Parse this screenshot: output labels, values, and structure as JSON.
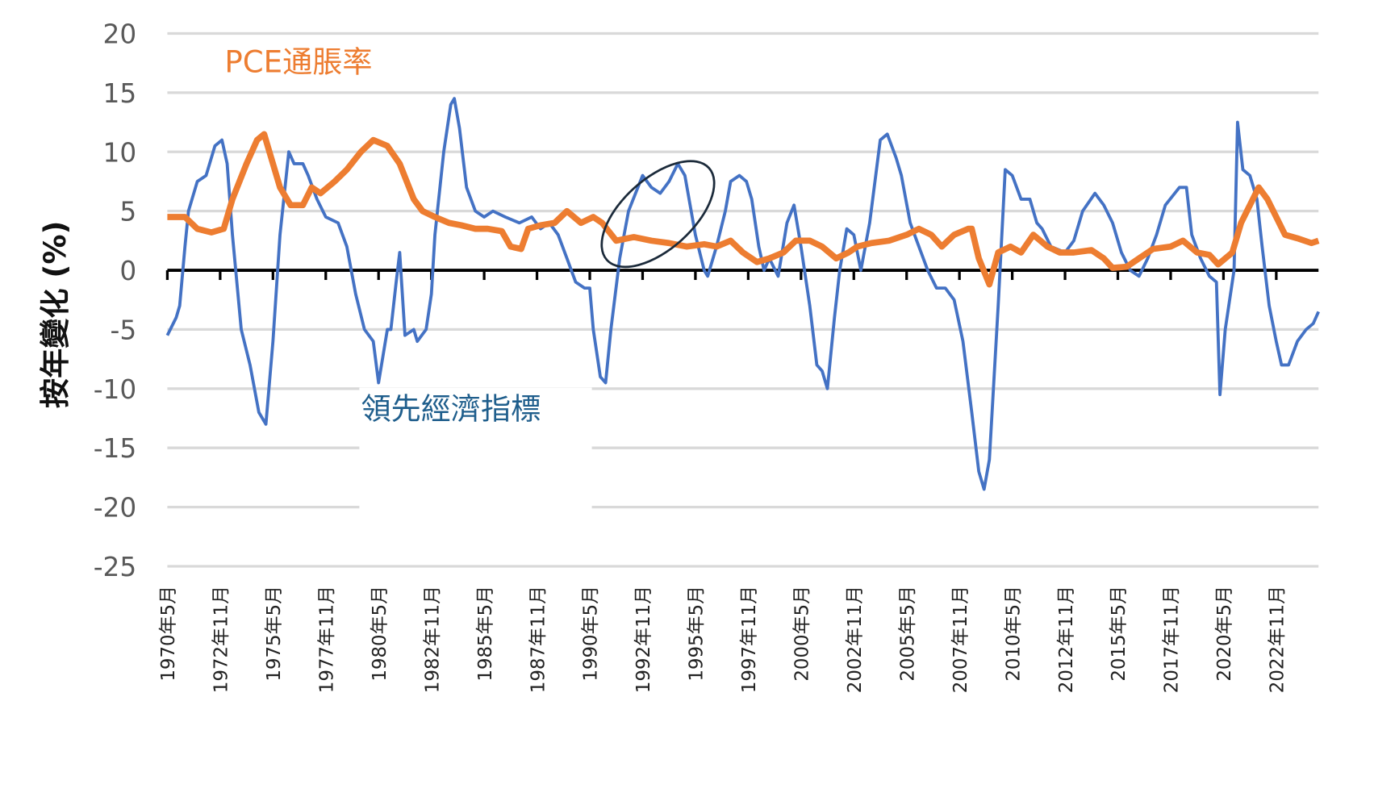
{
  "chart_data": {
    "type": "line",
    "title": "",
    "ylabel": "按年變化 (%)",
    "xlabel": "",
    "ylim": [
      -25,
      20
    ],
    "yticks": [
      "20",
      "15",
      "10",
      "5",
      "0",
      "-5",
      "-10",
      "-15",
      "-20",
      "-25"
    ],
    "ytick_values": [
      20,
      15,
      10,
      5,
      0,
      -5,
      -10,
      -15,
      -20,
      -25
    ],
    "x_unit": "months since 1970年5月",
    "xlim": [
      0,
      654
    ],
    "xtick_labels": [
      "1970年5月",
      "1972年11月",
      "1975年5月",
      "1977年11月",
      "1980年5月",
      "1982年11月",
      "1985年5月",
      "1987年11月",
      "1990年5月",
      "1992年11月",
      "1995年5月",
      "1997年11月",
      "2000年5月",
      "2002年11月",
      "2005年5月",
      "2007年11月",
      "2010年5月",
      "2012年11月",
      "2015年5月",
      "2017年11月",
      "2020年5月",
      "2022年11月"
    ],
    "grid": true,
    "series": [
      {
        "name": "PCE通脹率",
        "color": "#ED7D31",
        "points": [
          [
            0,
            4.5
          ],
          [
            10,
            4.5
          ],
          [
            17,
            3.5
          ],
          [
            25,
            3.2
          ],
          [
            32,
            3.5
          ],
          [
            37,
            6
          ],
          [
            45,
            9
          ],
          [
            51,
            11
          ],
          [
            55,
            11.5
          ],
          [
            59,
            9.5
          ],
          [
            64,
            7
          ],
          [
            70,
            5.5
          ],
          [
            77,
            5.5
          ],
          [
            82,
            7
          ],
          [
            87,
            6.5
          ],
          [
            95,
            7.5
          ],
          [
            102,
            8.5
          ],
          [
            110,
            10
          ],
          [
            117,
            11
          ],
          [
            125,
            10.5
          ],
          [
            132,
            9
          ],
          [
            140,
            6
          ],
          [
            145,
            5
          ],
          [
            152,
            4.5
          ],
          [
            160,
            4
          ],
          [
            167,
            3.8
          ],
          [
            175,
            3.5
          ],
          [
            182,
            3.5
          ],
          [
            190,
            3.3
          ],
          [
            195,
            2
          ],
          [
            201,
            1.8
          ],
          [
            205,
            3.5
          ],
          [
            212,
            3.8
          ],
          [
            220,
            4
          ],
          [
            227,
            5
          ],
          [
            235,
            4
          ],
          [
            242,
            4.5
          ],
          [
            247,
            4
          ],
          [
            255,
            2.5
          ],
          [
            265,
            2.8
          ],
          [
            275,
            2.5
          ],
          [
            285,
            2.3
          ],
          [
            295,
            2
          ],
          [
            305,
            2.2
          ],
          [
            312,
            2
          ],
          [
            320,
            2.5
          ],
          [
            327,
            1.5
          ],
          [
            335,
            0.7
          ],
          [
            342,
            1
          ],
          [
            350,
            1.5
          ],
          [
            357,
            2.5
          ],
          [
            365,
            2.5
          ],
          [
            372,
            2
          ],
          [
            380,
            1
          ],
          [
            387,
            1.5
          ],
          [
            392,
            2
          ],
          [
            400,
            2.3
          ],
          [
            410,
            2.5
          ],
          [
            420,
            3
          ],
          [
            427,
            3.5
          ],
          [
            434,
            3
          ],
          [
            440,
            2
          ],
          [
            447,
            3
          ],
          [
            455,
            3.5
          ],
          [
            457,
            3.5
          ],
          [
            461,
            1
          ],
          [
            467,
            -1.2
          ],
          [
            472,
            1.5
          ],
          [
            479,
            2
          ],
          [
            485,
            1.5
          ],
          [
            492,
            3
          ],
          [
            500,
            2
          ],
          [
            507,
            1.5
          ],
          [
            515,
            1.5
          ],
          [
            525,
            1.7
          ],
          [
            532,
            1
          ],
          [
            537,
            0.2
          ],
          [
            545,
            0.3
          ],
          [
            552,
            1
          ],
          [
            560,
            1.8
          ],
          [
            570,
            2
          ],
          [
            577,
            2.5
          ],
          [
            585,
            1.5
          ],
          [
            592,
            1.3
          ],
          [
            597,
            0.5
          ],
          [
            605,
            1.5
          ],
          [
            610,
            4
          ],
          [
            615,
            5.5
          ],
          [
            620,
            7
          ],
          [
            625,
            6
          ],
          [
            630,
            4.5
          ],
          [
            635,
            3
          ],
          [
            642,
            2.7
          ],
          [
            650,
            2.3
          ],
          [
            654,
            2.5
          ]
        ]
      },
      {
        "name": "領先經濟指標",
        "color": "#4472C4",
        "points": [
          [
            0,
            -5.5
          ],
          [
            5,
            -4
          ],
          [
            7,
            -3
          ],
          [
            10,
            2
          ],
          [
            12,
            5
          ],
          [
            17,
            7.5
          ],
          [
            22,
            8
          ],
          [
            27,
            10.5
          ],
          [
            31,
            11
          ],
          [
            34,
            9
          ],
          [
            37,
            3
          ],
          [
            42,
            -5
          ],
          [
            47,
            -8
          ],
          [
            52,
            -12
          ],
          [
            56,
            -13
          ],
          [
            60,
            -6
          ],
          [
            64,
            3
          ],
          [
            69,
            10
          ],
          [
            72,
            9
          ],
          [
            77,
            9
          ],
          [
            80,
            8
          ],
          [
            85,
            6
          ],
          [
            90,
            4.5
          ],
          [
            97,
            4
          ],
          [
            102,
            2
          ],
          [
            107,
            -2
          ],
          [
            112,
            -5
          ],
          [
            117,
            -6
          ],
          [
            120,
            -9.5
          ],
          [
            125,
            -5
          ],
          [
            127,
            -5
          ],
          [
            130,
            -1
          ],
          [
            132,
            1.5
          ],
          [
            135,
            -5.5
          ],
          [
            140,
            -5
          ],
          [
            142,
            -6
          ],
          [
            147,
            -5
          ],
          [
            150,
            -2
          ],
          [
            152,
            3
          ],
          [
            157,
            10
          ],
          [
            161,
            14
          ],
          [
            163,
            14.5
          ],
          [
            166,
            12
          ],
          [
            170,
            7
          ],
          [
            175,
            5
          ],
          [
            180,
            4.5
          ],
          [
            185,
            5
          ],
          [
            192,
            4.5
          ],
          [
            200,
            4
          ],
          [
            207,
            4.5
          ],
          [
            212,
            3.5
          ],
          [
            217,
            4
          ],
          [
            222,
            3
          ],
          [
            227,
            1
          ],
          [
            232,
            -1
          ],
          [
            237,
            -1.5
          ],
          [
            240,
            -1.5
          ],
          [
            242,
            -5
          ],
          [
            246,
            -9
          ],
          [
            249,
            -9.5
          ],
          [
            252,
            -5
          ],
          [
            257,
            1
          ],
          [
            262,
            5
          ],
          [
            270,
            8
          ],
          [
            275,
            7
          ],
          [
            280,
            6.5
          ],
          [
            285,
            7.5
          ],
          [
            290,
            9
          ],
          [
            294,
            8
          ],
          [
            300,
            3
          ],
          [
            305,
            0
          ],
          [
            307,
            -0.5
          ],
          [
            312,
            2
          ],
          [
            317,
            5
          ],
          [
            320,
            7.5
          ],
          [
            325,
            8
          ],
          [
            329,
            7.5
          ],
          [
            332,
            6
          ],
          [
            336,
            2
          ],
          [
            339,
            0
          ],
          [
            342,
            1
          ],
          [
            347,
            -0.5
          ],
          [
            352,
            4
          ],
          [
            356,
            5.5
          ],
          [
            360,
            2
          ],
          [
            365,
            -3
          ],
          [
            369,
            -8
          ],
          [
            372,
            -8.5
          ],
          [
            375,
            -10
          ],
          [
            379,
            -4
          ],
          [
            382,
            0
          ],
          [
            386,
            3.5
          ],
          [
            390,
            3
          ],
          [
            394,
            0
          ],
          [
            399,
            4
          ],
          [
            405,
            11
          ],
          [
            409,
            11.5
          ],
          [
            414,
            9.5
          ],
          [
            417,
            8
          ],
          [
            422,
            4
          ],
          [
            427,
            2
          ],
          [
            432,
            0
          ],
          [
            437,
            -1.5
          ],
          [
            442,
            -1.5
          ],
          [
            447,
            -2.5
          ],
          [
            452,
            -6
          ],
          [
            457,
            -12
          ],
          [
            461,
            -17
          ],
          [
            464,
            -18.5
          ],
          [
            467,
            -16
          ],
          [
            472,
            -3
          ],
          [
            476,
            8.5
          ],
          [
            480,
            8
          ],
          [
            485,
            6
          ],
          [
            490,
            6
          ],
          [
            494,
            4
          ],
          [
            497,
            3.5
          ],
          [
            502,
            2
          ],
          [
            510,
            1.5
          ],
          [
            515,
            2.5
          ],
          [
            520,
            5
          ],
          [
            527,
            6.5
          ],
          [
            532,
            5.5
          ],
          [
            537,
            4
          ],
          [
            542,
            1.5
          ],
          [
            547,
            0
          ],
          [
            552,
            -0.5
          ],
          [
            557,
            1
          ],
          [
            562,
            3
          ],
          [
            567,
            5.5
          ],
          [
            575,
            7
          ],
          [
            579,
            7
          ],
          [
            582,
            3
          ],
          [
            587,
            1
          ],
          [
            592,
            -0.5
          ],
          [
            596,
            -1
          ],
          [
            598,
            -10.5
          ],
          [
            601,
            -5
          ],
          [
            606,
            0
          ],
          [
            608,
            12.5
          ],
          [
            611,
            8.5
          ],
          [
            615,
            8
          ],
          [
            619,
            6
          ],
          [
            622,
            2
          ],
          [
            626,
            -3
          ],
          [
            630,
            -6
          ],
          [
            633,
            -8
          ],
          [
            637,
            -8
          ],
          [
            642,
            -6
          ],
          [
            647,
            -5
          ],
          [
            651,
            -4.5
          ],
          [
            654,
            -3.5
          ]
        ]
      }
    ],
    "annotations": [
      {
        "text": "PCE通脹率",
        "series": "PCE通脹率"
      },
      {
        "text": "領先經濟指標",
        "series": "領先經濟指標"
      }
    ],
    "highlight": "ellipse around 1992–1995 peak"
  }
}
